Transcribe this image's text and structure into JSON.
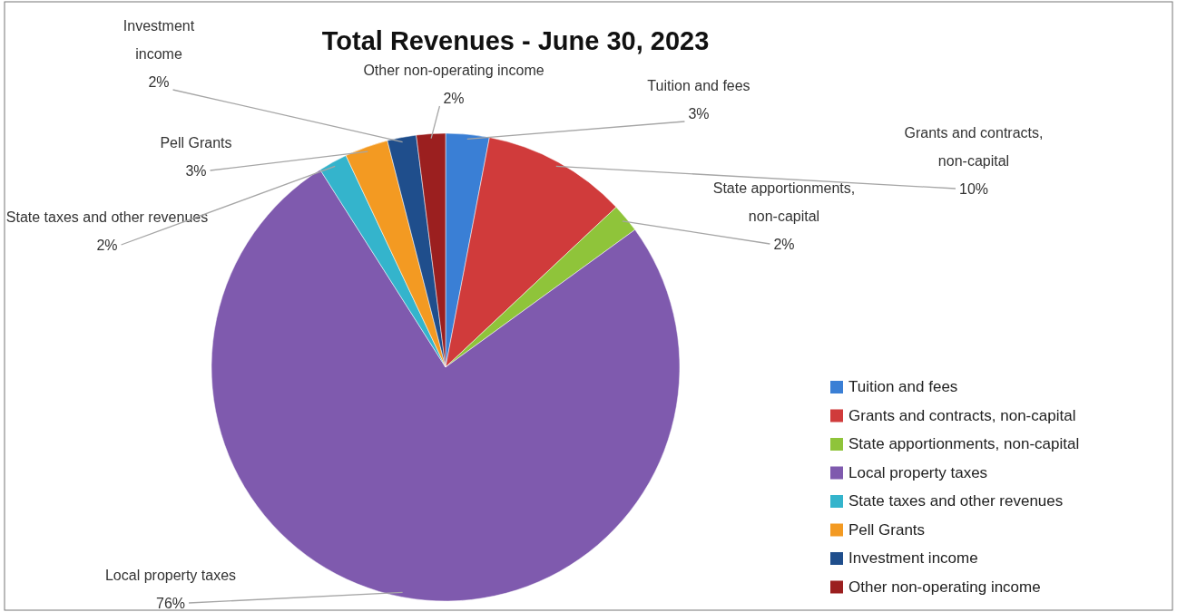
{
  "chart_data": {
    "type": "pie",
    "title": "Total Revenues - June 30, 2023",
    "categories": [
      "Tuition and fees",
      "Grants and contracts, non-capital",
      "State apportionments, non-capital",
      "Local property taxes",
      "State taxes and other revenues",
      "Pell Grants",
      "Investment income",
      "Other non-operating income"
    ],
    "values": [
      3,
      10,
      2,
      76,
      2,
      3,
      2,
      2
    ],
    "value_labels": [
      "3%",
      "10%",
      "2%",
      "76%",
      "2%",
      "3%",
      "2%",
      "2%"
    ],
    "colors": [
      "#3a7fd5",
      "#d03b3b",
      "#8fc43a",
      "#7f5aae",
      "#34b4cc",
      "#f39a22",
      "#1f4e8c",
      "#9b1f1f"
    ],
    "legend": "right"
  }
}
